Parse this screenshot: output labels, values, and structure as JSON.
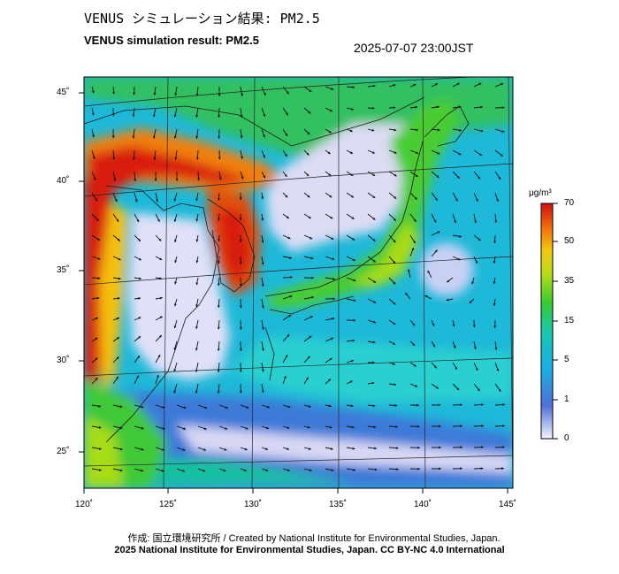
{
  "title_jp": "VENUS シミュレーション結果: PM2.5",
  "title_en": "VENUS simulation result: PM2.5",
  "timestamp": "2025-07-07 23:00JST",
  "lat_labels": [
    "45˚",
    "40˚",
    "35˚",
    "30˚",
    "25˚"
  ],
  "lon_labels": [
    "120˚",
    "125˚",
    "130˚",
    "135˚",
    "140˚",
    "145˚"
  ],
  "colorbar": {
    "unit": "μg/m³",
    "ticks": [
      "70",
      "50",
      "35",
      "15",
      "5",
      "1",
      "0"
    ],
    "colors": [
      "#e8e8f8",
      "#4a6ad8",
      "#1ea8e0",
      "#18c8b4",
      "#3ad038",
      "#a8dc18",
      "#f4cc10",
      "#f47a0a",
      "#d81a10"
    ]
  },
  "credit_line_1": "作成: 国立環境研究所 / Created by National Institute for Environmental Studies, Japan.",
  "credit_line_2": "2025 National Institute for Environmental Studies, Japan. CC BY-NC 4.0 International"
}
